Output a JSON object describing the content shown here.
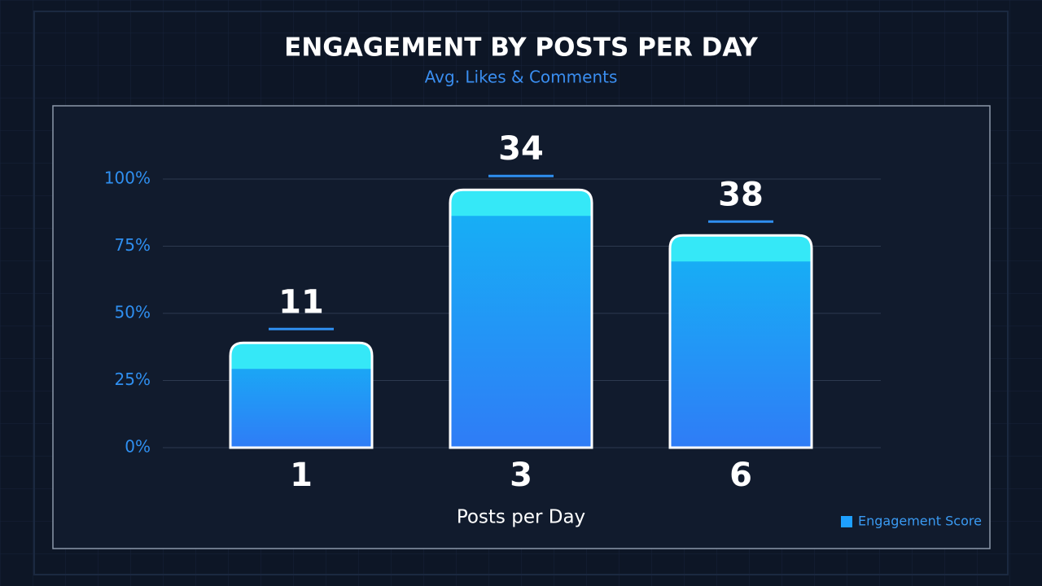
{
  "chart_data": {
    "type": "bar",
    "title": "ENGAGEMENT BY POSTS PER DAY",
    "subtitle": "Avg. Likes & Comments",
    "x_label": "Posts per Day",
    "categories": [
      "1",
      "3",
      "6"
    ],
    "series": [
      {
        "name": "Engagement Score",
        "color": "#1ea0ff",
        "values": [
          39,
          96,
          79
        ]
      }
    ],
    "annotations": [
      "11",
      "34",
      "38"
    ],
    "ylim": [
      0,
      100
    ],
    "yticks": [
      {
        "value": 0,
        "label": "0%"
      },
      {
        "value": 25,
        "label": "25%"
      },
      {
        "value": 50,
        "label": "50%"
      },
      {
        "value": 75,
        "label": "75%"
      },
      {
        "value": 100,
        "label": "100%"
      }
    ],
    "grid": true,
    "legend": "bottom-right"
  }
}
